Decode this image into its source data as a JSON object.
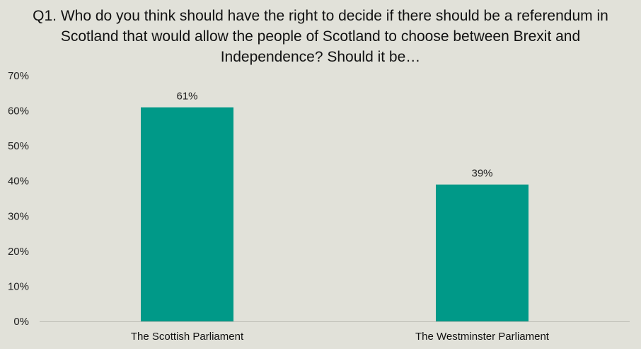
{
  "chart_data": {
    "type": "bar",
    "title": "Q1. Who do you think should have the right to decide if there should be a referendum in Scotland that would allow the people of Scotland to choose between Brexit and Independence? Should it be…",
    "categories": [
      "The Scottish Parliament",
      "The Westminster Parliament"
    ],
    "values": [
      61,
      39
    ],
    "data_labels": [
      "61%",
      "39%"
    ],
    "ylim": [
      0,
      70
    ],
    "yticks": [
      0,
      10,
      20,
      30,
      40,
      50,
      60,
      70
    ],
    "ytick_labels": [
      "0%",
      "10%",
      "20%",
      "30%",
      "40%",
      "50%",
      "60%",
      "70%"
    ],
    "xlabel": "",
    "ylabel": "",
    "grid": false,
    "legend": "none",
    "bar_color": "#009988",
    "axis_color": "#bdbdb5"
  }
}
